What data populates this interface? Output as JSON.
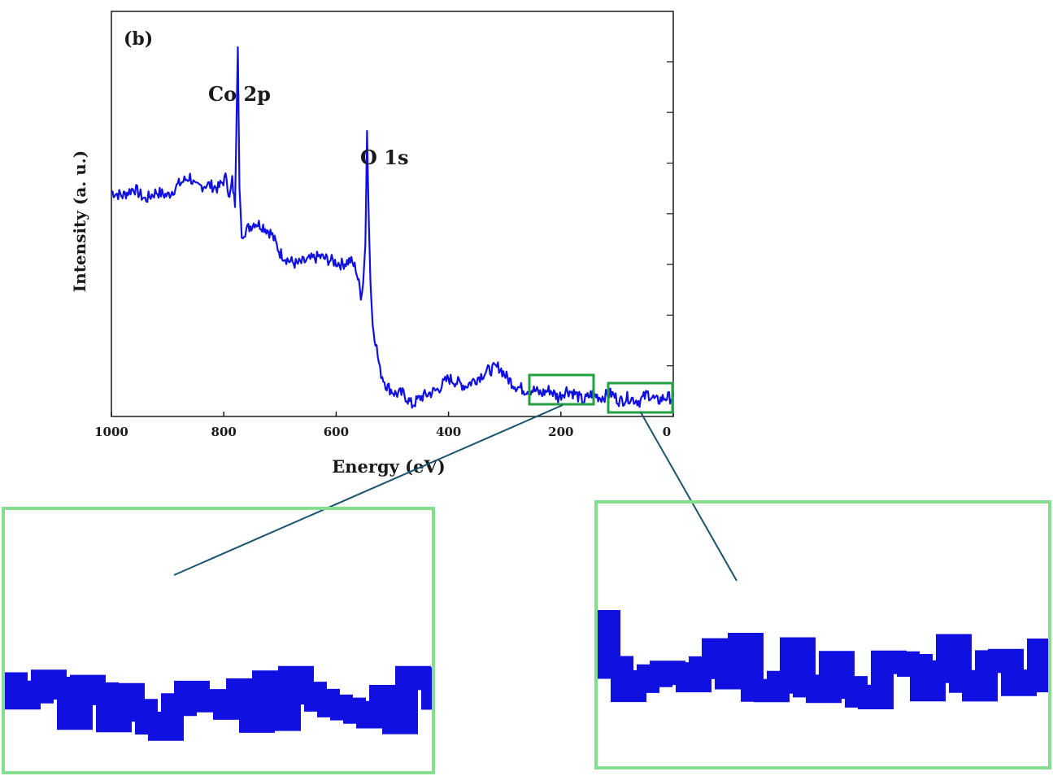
{
  "chart_data": {
    "type": "line",
    "panel_label": "(b)",
    "xlabel": "Energy (eV)",
    "ylabel": "Intensity (a. u.)",
    "xlim": [
      1000,
      0
    ],
    "x_reversed": true,
    "ylim": [
      0,
      100
    ],
    "y_tick_labels_shown": false,
    "x_ticks": [
      1000,
      800,
      600,
      400,
      200,
      0
    ],
    "x_tick_labels": [
      "1000",
      "800",
      "600",
      "400",
      "200",
      "0"
    ],
    "annotations": [
      {
        "text": "Co 2p",
        "x": 780,
        "y": 106
      },
      {
        "text": "O 1s",
        "x": 529,
        "y": 84
      }
    ],
    "series": [
      {
        "color": "#1010e0",
        "points": [
          [
            1000,
            59
          ],
          [
            980,
            58
          ],
          [
            960,
            60
          ],
          [
            940,
            57
          ],
          [
            920,
            59
          ],
          [
            900,
            58
          ],
          [
            880,
            61
          ],
          [
            860,
            63
          ],
          [
            850,
            60
          ],
          [
            830,
            61
          ],
          [
            810,
            60
          ],
          [
            795,
            63
          ],
          [
            790,
            57
          ],
          [
            785,
            62
          ],
          [
            780,
            55
          ],
          [
            775,
            97
          ],
          [
            772,
            60
          ],
          [
            768,
            48
          ],
          [
            760,
            49
          ],
          [
            745,
            51
          ],
          [
            730,
            50
          ],
          [
            715,
            48
          ],
          [
            700,
            43
          ],
          [
            685,
            41
          ],
          [
            670,
            40
          ],
          [
            650,
            41
          ],
          [
            630,
            42
          ],
          [
            610,
            41
          ],
          [
            590,
            40
          ],
          [
            575,
            41
          ],
          [
            565,
            39
          ],
          [
            556,
            32
          ],
          [
            552,
            35
          ],
          [
            548,
            45
          ],
          [
            545,
            75
          ],
          [
            542,
            52
          ],
          [
            539,
            36
          ],
          [
            535,
            24
          ],
          [
            530,
            20
          ],
          [
            522,
            12
          ],
          [
            510,
            8
          ],
          [
            495,
            6
          ],
          [
            480,
            6
          ],
          [
            465,
            3
          ],
          [
            450,
            5
          ],
          [
            435,
            6
          ],
          [
            420,
            7
          ],
          [
            400,
            10
          ],
          [
            385,
            9
          ],
          [
            370,
            8
          ],
          [
            350,
            10
          ],
          [
            330,
            12
          ],
          [
            310,
            13
          ],
          [
            295,
            10
          ],
          [
            280,
            8
          ],
          [
            265,
            7
          ],
          [
            250,
            7
          ],
          [
            235,
            6
          ],
          [
            220,
            7
          ],
          [
            205,
            5
          ],
          [
            190,
            7
          ],
          [
            175,
            6
          ],
          [
            160,
            4
          ],
          [
            145,
            6
          ],
          [
            130,
            5
          ],
          [
            110,
            6
          ],
          [
            95,
            4
          ],
          [
            80,
            5
          ],
          [
            60,
            4
          ],
          [
            45,
            6
          ],
          [
            30,
            4
          ],
          [
            15,
            5
          ],
          [
            0,
            5
          ]
        ]
      }
    ],
    "zoom_regions": [
      {
        "x_range": [
          235,
          125
        ]
      },
      {
        "x_range": [
          120,
          5
        ]
      }
    ],
    "colors": {
      "line": "#1010e0",
      "zoom_box": "#22a040",
      "zoom_panel_border": "#86dd8e",
      "connector": "#1a5570"
    }
  }
}
